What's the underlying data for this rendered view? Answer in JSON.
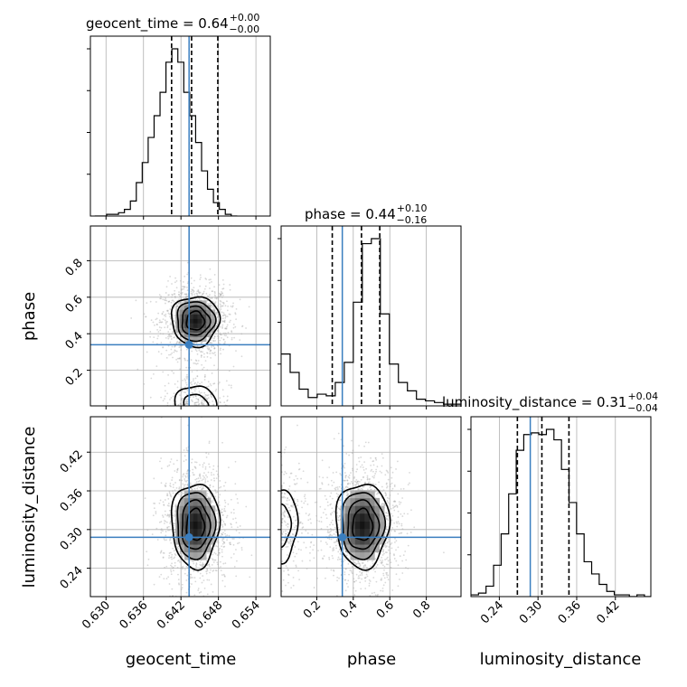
{
  "chart_data": {
    "type": "corner",
    "parameters": [
      "geocent_time",
      "phase",
      "luminosity_distance"
    ],
    "axis_labels": {
      "geocent_time": "geocent_time",
      "phase": "phase",
      "luminosity_distance": "luminosity_distance"
    },
    "ranges": {
      "geocent_time": [
        0.6275,
        0.6563
      ],
      "phase": [
        0.005,
        0.99
      ],
      "luminosity_distance": [
        0.196,
        0.475
      ]
    },
    "ticks": {
      "geocent_time": {
        "values": [
          0.63,
          0.636,
          0.642,
          0.648,
          0.654
        ],
        "labels": [
          "0.630",
          "0.636",
          "0.642",
          "0.648",
          "0.654"
        ]
      },
      "phase": {
        "values": [
          0.2,
          0.4,
          0.6,
          0.8
        ],
        "labels": [
          "0.2",
          "0.4",
          "0.6",
          "0.8"
        ]
      },
      "luminosity_distance": {
        "values": [
          0.24,
          0.3,
          0.36,
          0.42
        ],
        "labels": [
          "0.24",
          "0.30",
          "0.36",
          "0.42"
        ]
      }
    },
    "titles": [
      {
        "param": "geocent_time",
        "text": "geocent_time = 0.64",
        "sup": "+0.00",
        "sub": "−0.00"
      },
      {
        "param": "phase",
        "text": "phase = 0.44",
        "sup": "+0.10",
        "sub": "−0.16"
      },
      {
        "param": "luminosity_distance",
        "text": "luminosity_distance = 0.31",
        "sup": "+0.04",
        "sub": "−0.04"
      }
    ],
    "truths": {
      "geocent_time": 0.6433,
      "phase": 0.34,
      "luminosity_distance": 0.288
    },
    "quantiles": {
      "geocent_time": [
        0.6405,
        0.6437,
        0.6479
      ],
      "phase": [
        0.285,
        0.445,
        0.545
      ],
      "luminosity_distance": [
        0.268,
        0.306,
        0.348
      ]
    },
    "histograms": {
      "geocent_time": {
        "bin_start": 0.6282,
        "bin_width": 0.00095,
        "counts": [
          0,
          0,
          1,
          1,
          2,
          4,
          9,
          20,
          32,
          47,
          60,
          74,
          92,
          100,
          92,
          74,
          60,
          44,
          27,
          16,
          8,
          4,
          1,
          0
        ]
      },
      "phase": {
        "bin_start": 0.005,
        "bin_width": 0.0494,
        "counts": [
          31,
          20,
          10,
          5,
          7,
          6,
          14,
          26,
          62,
          97,
          100,
          55,
          25,
          14,
          9,
          4,
          3,
          2,
          1,
          1
        ]
      },
      "luminosity_distance": {
        "bin_start": 0.196,
        "bin_width": 0.0117,
        "counts": [
          1,
          2,
          6,
          18,
          36,
          59,
          84,
          93,
          94,
          93,
          96,
          90,
          73,
          54,
          36,
          20,
          13,
          7,
          3,
          1,
          1,
          0,
          1,
          0
        ]
      }
    },
    "density_2d": [
      {
        "x": "geocent_time",
        "y": "phase",
        "blobs": [
          {
            "cx": 0.6443,
            "cy": 0.47,
            "sx": 0.0021,
            "sy": 0.075,
            "levels": [
              0.025,
              0.053,
              0.082,
              0.11
            ]
          },
          {
            "cx": 0.6443,
            "cy": 0.0,
            "sx": 0.0021,
            "sy": 0.075,
            "levels": [
              0.025,
              0.053
            ]
          }
        ]
      },
      {
        "x": "geocent_time",
        "y": "luminosity_distance",
        "blobs": [
          {
            "cx": 0.6443,
            "cy": 0.307,
            "sx": 0.0021,
            "sy": 0.036,
            "levels": [
              0.021,
              0.046,
              0.072,
              0.098
            ]
          }
        ]
      },
      {
        "x": "phase",
        "y": "luminosity_distance",
        "blobs": [
          {
            "cx": 0.45,
            "cy": 0.307,
            "sx": 0.08,
            "sy": 0.036,
            "levels": [
              0.05,
              0.1,
              0.15,
              0.2
            ]
          },
          {
            "cx": 0.0,
            "cy": 0.307,
            "sx": 0.06,
            "sy": 0.036,
            "levels": [
              0.05,
              0.1
            ]
          }
        ]
      }
    ],
    "colors": {
      "histogram": "#000000",
      "quantile": "#000000",
      "truth": "#3a7ebf",
      "grid": "#b0b0b0",
      "points": "#aaaaaa",
      "density": "#000000"
    },
    "grid": true
  }
}
